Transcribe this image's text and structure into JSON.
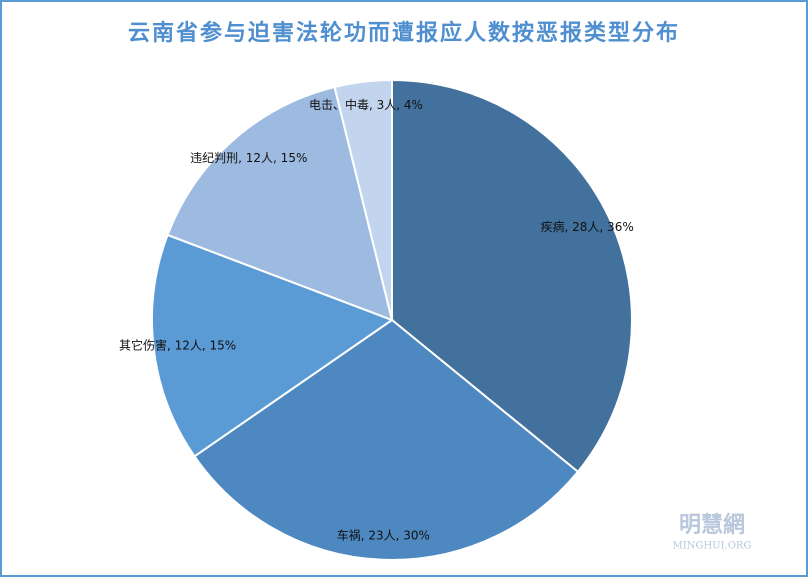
{
  "chart_data": {
    "type": "pie",
    "title": "云南省参与迫害法轮功而遭报应人数按恶报类型分布",
    "values": [
      28,
      23,
      12,
      12,
      3
    ],
    "value_labels": [
      "疾病, 28人, 36%",
      "车祸, 23人, 30%",
      "其它伤害, 12人, 15%",
      "违纪判刑, 12人, 15%",
      "电击、中毒, 3人, 4%"
    ],
    "colors": [
      "#41719c",
      "#4e88c0",
      "#5b9bd5",
      "#9dbbe0",
      "#c3d5ee"
    ],
    "watermark": "明慧網",
    "watermark_sub": "MINGHUI.ORG"
  }
}
